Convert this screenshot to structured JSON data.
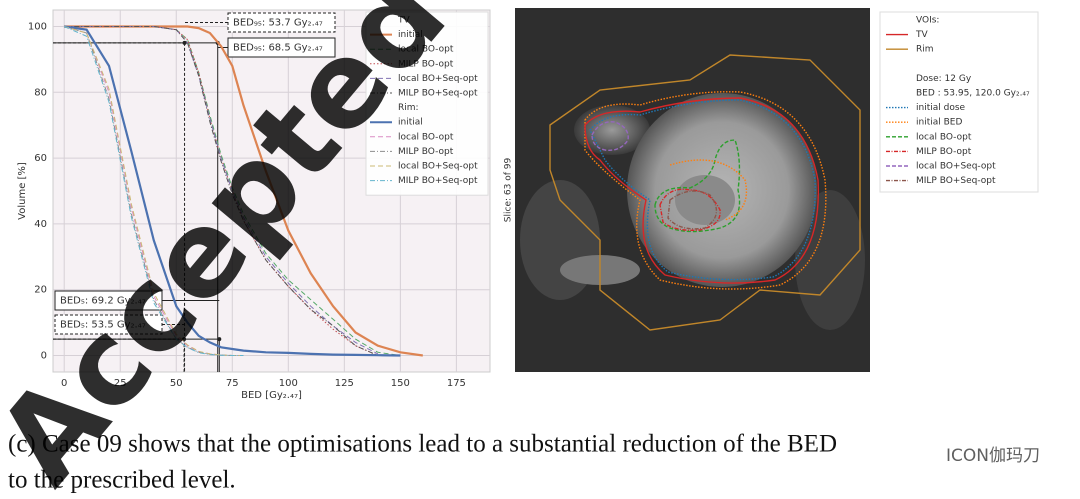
{
  "chart_data": {
    "type": "line",
    "xlabel": "BED [Gy₂.₄₇]",
    "ylabel": "Volume [%]",
    "xlim": [
      -5,
      190
    ],
    "ylim": [
      -5,
      105
    ],
    "xticks": [
      0,
      25,
      50,
      75,
      100,
      125,
      150,
      175
    ],
    "yticks": [
      0,
      20,
      40,
      60,
      80,
      100
    ],
    "grid": true,
    "legend": "upper right",
    "x": [
      0,
      10,
      20,
      30,
      40,
      50,
      55,
      60,
      65,
      70,
      75,
      80,
      90,
      100,
      110,
      120,
      130,
      140,
      150,
      160
    ],
    "groups": [
      {
        "name": "TV",
        "series": [
          {
            "name": "initial",
            "color": "#dd8452",
            "dash": "",
            "values": [
              100,
              100,
              100,
              100,
              100,
              100,
              100,
              99.5,
              98,
              94,
              88,
              76,
              56,
              38,
              25,
              15,
              7,
              3,
              1,
              0
            ]
          },
          {
            "name": "local BO-opt",
            "color": "#55a868",
            "dash": "5 3",
            "values": [
              100,
              100,
              100,
              100,
              100,
              99,
              96,
              86,
              73,
              61,
              51,
              43,
              31,
              23,
              17,
              11,
              5,
              1,
              0,
              null
            ]
          },
          {
            "name": "MILP BO-opt",
            "color": "#c44e52",
            "dash": "1.5 2",
            "values": [
              100,
              100,
              100,
              100,
              100,
              99,
              96,
              86,
              72,
              60,
              50,
              41,
              29,
              21,
              14,
              8,
              3,
              0,
              null,
              null
            ]
          },
          {
            "name": "local BO+Seq-opt",
            "color": "#8172b2",
            "dash": "5 3",
            "values": [
              100,
              100,
              100,
              100,
              100,
              99,
              95,
              85,
              72,
              60,
              50,
              42,
              30,
              22,
              15,
              9,
              4,
              0.5,
              null,
              null
            ]
          },
          {
            "name": "MILP BO+Seq-opt",
            "color": "#555555",
            "dash": "5 2 1 2",
            "values": [
              100,
              100,
              100,
              100,
              100,
              99,
              95,
              85,
              71,
              59,
              49,
              41,
              29,
              21,
              14,
              9,
              3,
              0,
              null,
              null
            ]
          }
        ]
      },
      {
        "name": "Rim:",
        "series": [
          {
            "name": "initial",
            "color": "#4c72b0",
            "dash": "",
            "values": [
              100,
              99,
              88,
              62,
              35,
              15,
              10,
              6,
              4,
              2.5,
              2,
              1.5,
              1,
              0.8,
              0.5,
              0.3,
              0.2,
              0.1,
              0,
              null
            ]
          },
          {
            "name": "local BO-opt",
            "color": "#da8bc3",
            "dash": "5 3",
            "values": [
              100,
              98,
              80,
              45,
              18,
              6,
              3,
              1.2,
              0.5,
              0.2,
              0,
              0,
              null,
              null,
              null,
              null,
              null,
              null,
              null,
              null
            ]
          },
          {
            "name": "MILP BO-opt",
            "color": "#8c8c8c",
            "dash": "5 2 1 2",
            "values": [
              100,
              98,
              78,
              43,
              17,
              5,
              2.5,
              1,
              0.4,
              0.1,
              0,
              0,
              null,
              null,
              null,
              null,
              null,
              null,
              null,
              null
            ]
          },
          {
            "name": "local BO+Seq-opt",
            "color": "#ccb974",
            "dash": "5 3",
            "values": [
              100,
              98,
              81,
              46,
              19,
              6.5,
              3.2,
              1.3,
              0.5,
              0.2,
              0,
              0,
              null,
              null,
              null,
              null,
              null,
              null,
              null,
              null
            ]
          },
          {
            "name": "MILP BO+Seq-opt",
            "color": "#64b5cd",
            "dash": "5 2 1 2",
            "values": [
              100,
              97,
              77,
              42,
              16,
              5,
              2.4,
              0.9,
              0.3,
              0.1,
              0,
              0,
              null,
              null,
              null,
              null,
              null,
              null,
              null,
              null
            ]
          }
        ]
      }
    ],
    "annotations": [
      {
        "label": "BED₉₅: 53.7 Gy₂.₄₇",
        "x": 53.7,
        "y": 95,
        "style": "dashed"
      },
      {
        "label": "BED₉₅: 68.5 Gy₂.₄₇",
        "x": 68.5,
        "y": 95,
        "style": "solid"
      },
      {
        "label": "BED₅: 69.2 Gy₂.₄₇",
        "x": 69.2,
        "y": 5,
        "style": "solid"
      },
      {
        "label": "BED₅: 53.5 Gy₂.₄₇",
        "x": 53.5,
        "y": 5,
        "style": "dashed"
      }
    ]
  },
  "figure2": {
    "slice_label": "Slice: 63 of 99",
    "legend": [
      {
        "label": "VOIs:"
      },
      {
        "label": "TV",
        "color": "#d62728",
        "dash": ""
      },
      {
        "label": "Rim",
        "color": "#c0862a",
        "dash": ""
      },
      {
        "label": "Dose: 12 Gy"
      },
      {
        "label": "BED : 53.95, 120.0 Gy₂.₄₇"
      },
      {
        "label": "initial dose",
        "color": "#1f77b4",
        "dash": "1.5 1.5"
      },
      {
        "label": "initial BED",
        "color": "#ff7f0e",
        "dash": "1.5 1.5"
      },
      {
        "label": "local BO-opt",
        "color": "#2ca02c",
        "dash": "4 2"
      },
      {
        "label": "MILP BO-opt",
        "color": "#d62728",
        "dash": "4 1.5 1 1.5"
      },
      {
        "label": "local BO+Seq-opt",
        "color": "#9467bd",
        "dash": "4 2"
      },
      {
        "label": "MILP BO+Seq-opt",
        "color": "#8c564b",
        "dash": "4 1.5 1 1.5"
      }
    ]
  },
  "caption": [
    "(c) Case 09 shows that the optimisations lead to a substantial reduction of the BED",
    "to the prescribed level."
  ],
  "watermark": "Accepted",
  "badge": "ICON伽玛刀"
}
